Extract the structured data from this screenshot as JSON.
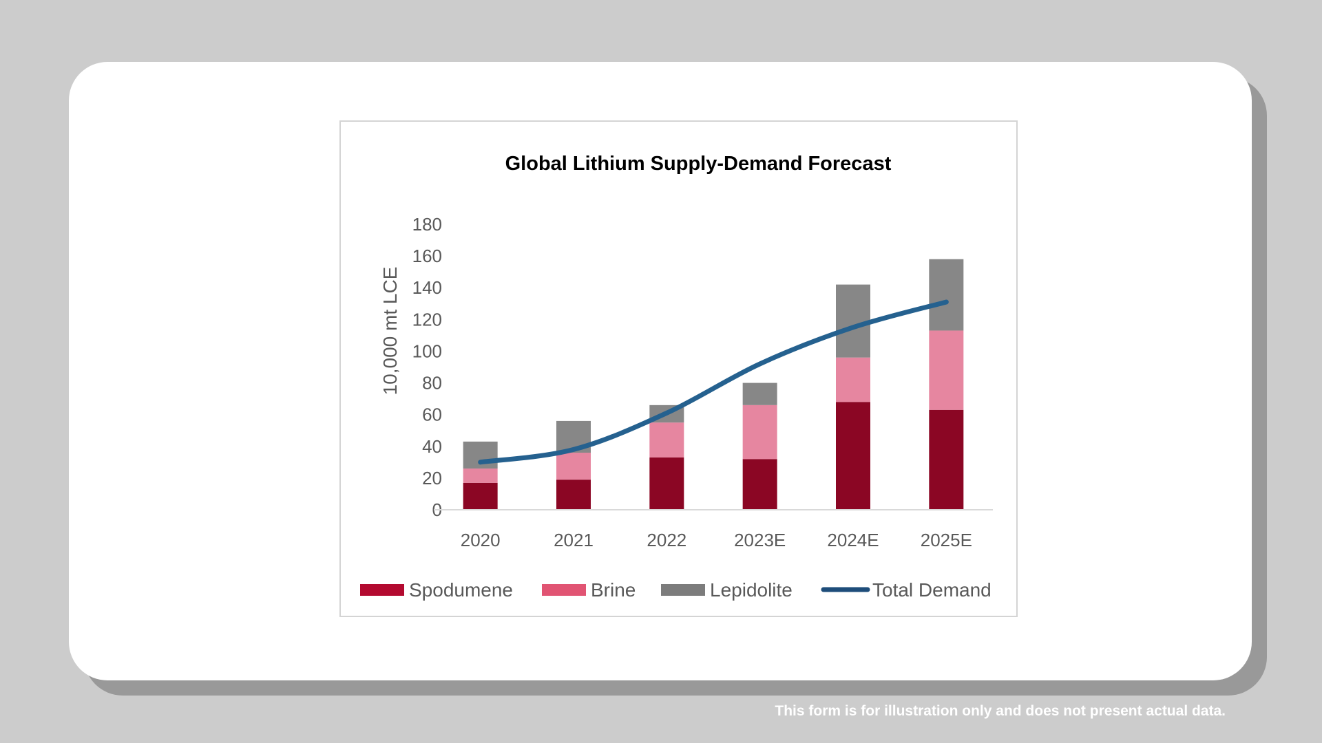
{
  "chart_data": {
    "type": "bar",
    "stacked": true,
    "title": "Global Lithium Supply-Demand Forecast",
    "xlabel": "",
    "ylabel": "10,000 mt LCE",
    "ylim": [
      0,
      180
    ],
    "yticks": [
      "0",
      "20",
      "40",
      "60",
      "80",
      "100",
      "120",
      "140",
      "160",
      "180"
    ],
    "categories": [
      "2020",
      "2021",
      "2022",
      "2023E",
      "2024E",
      "2025E"
    ],
    "series": [
      {
        "name": "Spodumene",
        "kind": "bar",
        "color": "#8b0624",
        "legend_color": "#b30a30",
        "values": [
          17,
          19,
          33,
          32,
          68,
          63
        ]
      },
      {
        "name": "Brine",
        "kind": "bar",
        "color": "#e686a0",
        "legend_color": "#e15473",
        "values": [
          9,
          17,
          22,
          34,
          28,
          50
        ]
      },
      {
        "name": "Lepidolite",
        "kind": "bar",
        "color": "#878787",
        "legend_color": "#7c7c7c",
        "values": [
          17,
          20,
          11,
          14,
          46,
          45
        ]
      },
      {
        "name": "Total Demand",
        "kind": "line",
        "color": "#25618f",
        "legend_color": "#1e4d7a",
        "values": [
          30,
          38,
          61,
          92,
          115,
          131
        ]
      }
    ],
    "grid": false,
    "legend_position": "bottom"
  },
  "footer": {
    "disclaimer": "This form is for illustration only and does not present actual data."
  }
}
